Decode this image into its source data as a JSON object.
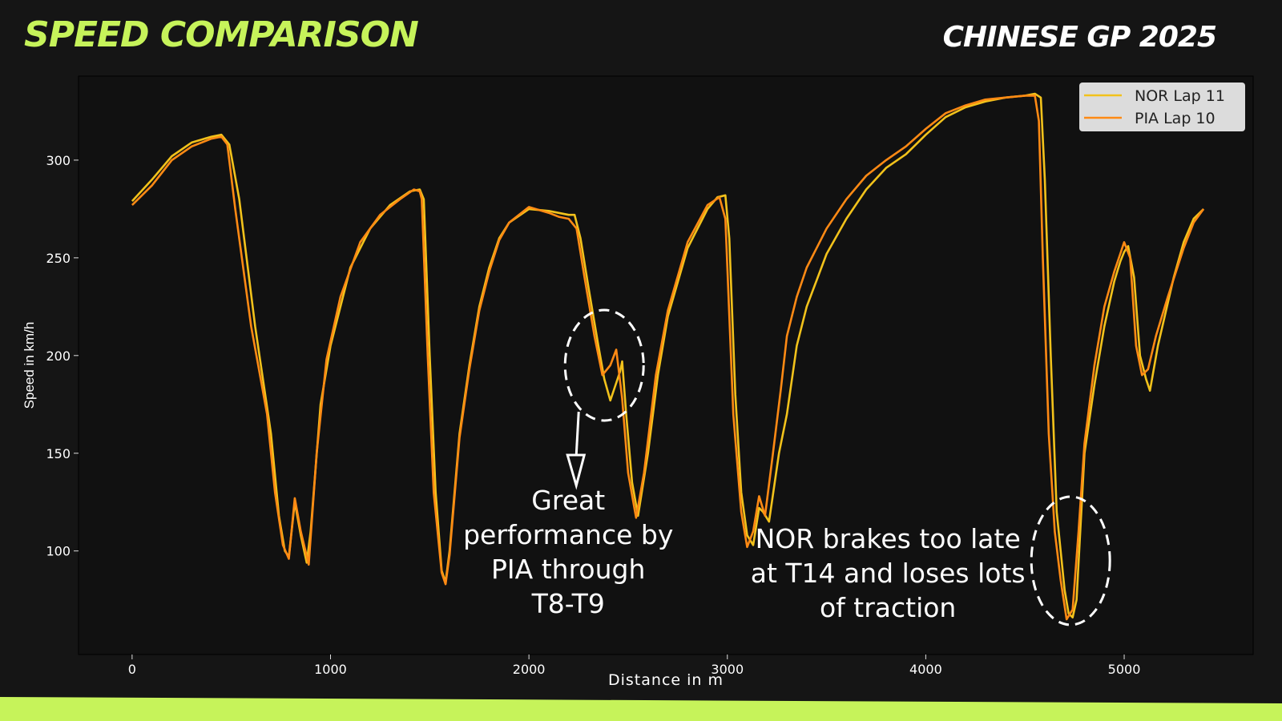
{
  "header": {
    "title": "SPEED COMPARISON",
    "subtitle": "CHINESE GP 2025"
  },
  "colors": {
    "background": "#151515",
    "plot_bg": "#111111",
    "accent": "#c6f35a",
    "nor": "#f2c21b",
    "pia": "#ff8a14"
  },
  "chart_data": {
    "type": "line",
    "xlabel": "Distance in m",
    "ylabel": "Speed in km/h",
    "xlim": [
      -270,
      5650
    ],
    "ylim": [
      47,
      343
    ],
    "xticks": [
      0,
      1000,
      2000,
      3000,
      4000,
      5000
    ],
    "yticks": [
      100,
      150,
      200,
      250,
      300
    ],
    "grid": false,
    "legend_position": "top-right",
    "series": [
      {
        "name": "NOR Lap 11",
        "color": "#f2c21b",
        "points": [
          [
            0,
            279
          ],
          [
            100,
            290
          ],
          [
            200,
            302
          ],
          [
            300,
            309
          ],
          [
            400,
            312
          ],
          [
            450,
            313
          ],
          [
            490,
            308
          ],
          [
            540,
            280
          ],
          [
            620,
            215
          ],
          [
            700,
            160
          ],
          [
            740,
            118
          ],
          [
            770,
            100
          ],
          [
            790,
            97
          ],
          [
            820,
            125
          ],
          [
            850,
            108
          ],
          [
            880,
            94
          ],
          [
            900,
            110
          ],
          [
            950,
            175
          ],
          [
            1000,
            205
          ],
          [
            1100,
            245
          ],
          [
            1200,
            265
          ],
          [
            1300,
            277
          ],
          [
            1400,
            284
          ],
          [
            1450,
            285
          ],
          [
            1470,
            280
          ],
          [
            1500,
            200
          ],
          [
            1530,
            130
          ],
          [
            1560,
            90
          ],
          [
            1580,
            84
          ],
          [
            1600,
            100
          ],
          [
            1650,
            160
          ],
          [
            1700,
            195
          ],
          [
            1750,
            225
          ],
          [
            1800,
            245
          ],
          [
            1850,
            260
          ],
          [
            1900,
            268
          ],
          [
            2000,
            275
          ],
          [
            2100,
            274
          ],
          [
            2200,
            272
          ],
          [
            2230,
            272
          ],
          [
            2260,
            260
          ],
          [
            2300,
            235
          ],
          [
            2350,
            205
          ],
          [
            2380,
            188
          ],
          [
            2410,
            177
          ],
          [
            2440,
            186
          ],
          [
            2460,
            192
          ],
          [
            2470,
            197
          ],
          [
            2490,
            170
          ],
          [
            2520,
            135
          ],
          [
            2550,
            118
          ],
          [
            2600,
            150
          ],
          [
            2650,
            190
          ],
          [
            2700,
            220
          ],
          [
            2800,
            255
          ],
          [
            2900,
            275
          ],
          [
            2950,
            281
          ],
          [
            2990,
            282
          ],
          [
            3010,
            260
          ],
          [
            3040,
            180
          ],
          [
            3070,
            130
          ],
          [
            3100,
            108
          ],
          [
            3130,
            103
          ],
          [
            3160,
            122
          ],
          [
            3180,
            120
          ],
          [
            3210,
            115
          ],
          [
            3260,
            150
          ],
          [
            3300,
            170
          ],
          [
            3350,
            205
          ],
          [
            3400,
            225
          ],
          [
            3500,
            252
          ],
          [
            3600,
            270
          ],
          [
            3700,
            285
          ],
          [
            3800,
            296
          ],
          [
            3900,
            303
          ],
          [
            4000,
            313
          ],
          [
            4100,
            322
          ],
          [
            4200,
            327
          ],
          [
            4300,
            330
          ],
          [
            4400,
            332
          ],
          [
            4500,
            333
          ],
          [
            4550,
            334
          ],
          [
            4580,
            332
          ],
          [
            4600,
            290
          ],
          [
            4630,
            200
          ],
          [
            4660,
            120
          ],
          [
            4700,
            80
          ],
          [
            4720,
            68
          ],
          [
            4740,
            66
          ],
          [
            4760,
            75
          ],
          [
            4800,
            150
          ],
          [
            4850,
            185
          ],
          [
            4900,
            215
          ],
          [
            4950,
            238
          ],
          [
            4980,
            248
          ],
          [
            5000,
            253
          ],
          [
            5020,
            256
          ],
          [
            5050,
            240
          ],
          [
            5080,
            200
          ],
          [
            5110,
            188
          ],
          [
            5130,
            182
          ],
          [
            5170,
            205
          ],
          [
            5250,
            240
          ],
          [
            5300,
            258
          ],
          [
            5350,
            270
          ],
          [
            5400,
            275
          ]
        ]
      },
      {
        "name": "PIA Lap 10",
        "color": "#ff8a14",
        "points": [
          [
            0,
            277
          ],
          [
            100,
            287
          ],
          [
            200,
            300
          ],
          [
            300,
            307
          ],
          [
            400,
            311
          ],
          [
            450,
            312
          ],
          [
            480,
            308
          ],
          [
            520,
            275
          ],
          [
            600,
            215
          ],
          [
            680,
            170
          ],
          [
            720,
            130
          ],
          [
            760,
            103
          ],
          [
            790,
            96
          ],
          [
            820,
            127
          ],
          [
            850,
            110
          ],
          [
            890,
            93
          ],
          [
            930,
            150
          ],
          [
            980,
            198
          ],
          [
            1050,
            230
          ],
          [
            1150,
            258
          ],
          [
            1250,
            272
          ],
          [
            1350,
            280
          ],
          [
            1420,
            285
          ],
          [
            1450,
            284
          ],
          [
            1460,
            280
          ],
          [
            1490,
            200
          ],
          [
            1520,
            130
          ],
          [
            1560,
            89
          ],
          [
            1580,
            83
          ],
          [
            1600,
            98
          ],
          [
            1650,
            158
          ],
          [
            1700,
            193
          ],
          [
            1750,
            223
          ],
          [
            1800,
            243
          ],
          [
            1850,
            259
          ],
          [
            1900,
            268
          ],
          [
            2000,
            276
          ],
          [
            2100,
            273
          ],
          [
            2150,
            271
          ],
          [
            2200,
            270
          ],
          [
            2240,
            265
          ],
          [
            2280,
            240
          ],
          [
            2330,
            210
          ],
          [
            2370,
            190
          ],
          [
            2410,
            195
          ],
          [
            2440,
            203
          ],
          [
            2470,
            178
          ],
          [
            2500,
            140
          ],
          [
            2540,
            117
          ],
          [
            2580,
            140
          ],
          [
            2640,
            190
          ],
          [
            2700,
            223
          ],
          [
            2800,
            258
          ],
          [
            2900,
            277
          ],
          [
            2960,
            281
          ],
          [
            2990,
            270
          ],
          [
            3030,
            170
          ],
          [
            3070,
            120
          ],
          [
            3100,
            102
          ],
          [
            3130,
            110
          ],
          [
            3160,
            128
          ],
          [
            3190,
            118
          ],
          [
            3230,
            150
          ],
          [
            3270,
            183
          ],
          [
            3300,
            210
          ],
          [
            3350,
            230
          ],
          [
            3400,
            245
          ],
          [
            3500,
            265
          ],
          [
            3600,
            280
          ],
          [
            3700,
            292
          ],
          [
            3800,
            300
          ],
          [
            3900,
            307
          ],
          [
            4000,
            316
          ],
          [
            4100,
            324
          ],
          [
            4200,
            328
          ],
          [
            4300,
            331
          ],
          [
            4400,
            332
          ],
          [
            4500,
            333
          ],
          [
            4550,
            333
          ],
          [
            4570,
            320
          ],
          [
            4590,
            250
          ],
          [
            4620,
            160
          ],
          [
            4650,
            110
          ],
          [
            4680,
            85
          ],
          [
            4710,
            65
          ],
          [
            4740,
            70
          ],
          [
            4770,
            110
          ],
          [
            4800,
            155
          ],
          [
            4850,
            195
          ],
          [
            4900,
            225
          ],
          [
            4950,
            243
          ],
          [
            4980,
            252
          ],
          [
            5000,
            258
          ],
          [
            5030,
            250
          ],
          [
            5060,
            205
          ],
          [
            5090,
            190
          ],
          [
            5120,
            193
          ],
          [
            5160,
            210
          ],
          [
            5220,
            230
          ],
          [
            5300,
            255
          ],
          [
            5350,
            268
          ],
          [
            5400,
            275
          ]
        ]
      }
    ],
    "annotations": [
      {
        "id": "t8t9",
        "text": [
          "Great",
          "performance by",
          "PIA through",
          "T8-T9"
        ],
        "ellipse_center": [
          2380,
          195
        ]
      },
      {
        "id": "t14",
        "text": [
          "NOR brakes too late",
          "at T14 and loses lots",
          "of traction"
        ],
        "ellipse_center": [
          4730,
          95
        ]
      }
    ]
  }
}
